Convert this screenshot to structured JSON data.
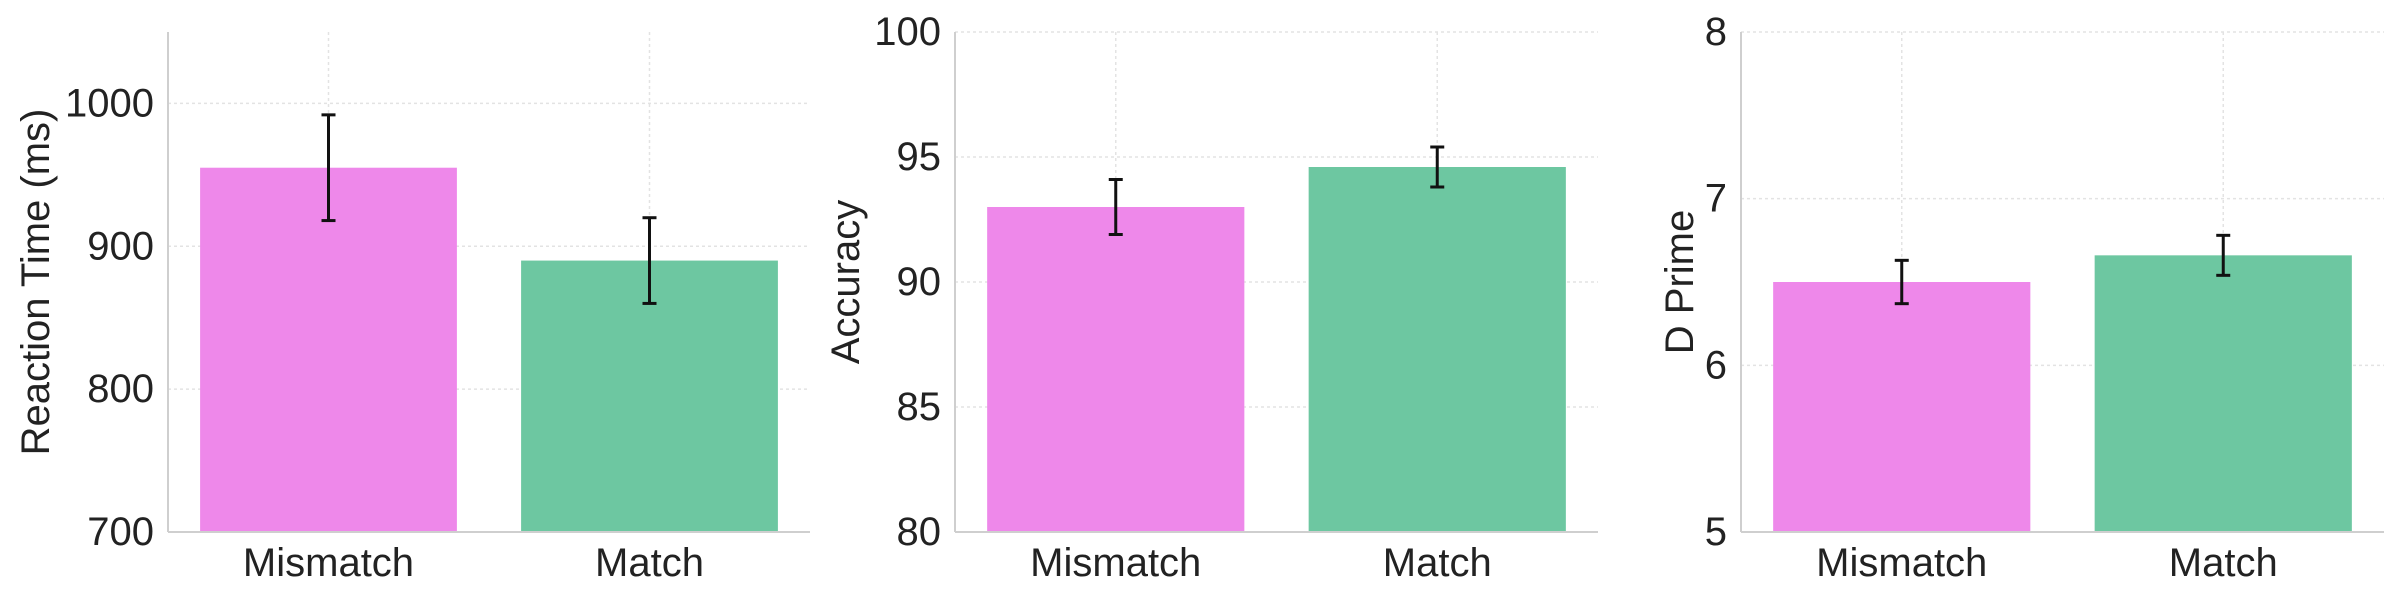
{
  "chart_data": [
    {
      "type": "bar",
      "categories": [
        "Mismatch",
        "Match"
      ],
      "values": [
        955,
        890
      ],
      "errors": [
        37,
        30
      ],
      "colors": [
        "#ee88ea",
        "#6dc7a1"
      ],
      "ylabel": "Reaction Time (ms)",
      "xlabel": "",
      "ylim": [
        700,
        1050
      ],
      "yticks": [
        700,
        800,
        900,
        1000
      ],
      "grid": true
    },
    {
      "type": "bar",
      "categories": [
        "Mismatch",
        "Match"
      ],
      "values": [
        93.0,
        94.6
      ],
      "errors": [
        1.1,
        0.8
      ],
      "colors": [
        "#ee88ea",
        "#6dc7a1"
      ],
      "ylabel": "Accuracy",
      "xlabel": "",
      "ylim": [
        80,
        100
      ],
      "yticks": [
        80,
        85,
        90,
        95,
        100
      ],
      "grid": true
    },
    {
      "type": "bar",
      "categories": [
        "Mismatch",
        "Match"
      ],
      "values": [
        6.5,
        6.66
      ],
      "errors": [
        0.13,
        0.12
      ],
      "colors": [
        "#ee88ea",
        "#6dc7a1"
      ],
      "ylabel": "D Prime",
      "xlabel": "",
      "ylim": [
        5,
        8
      ],
      "yticks": [
        5,
        6,
        7,
        8
      ],
      "grid": true
    }
  ]
}
